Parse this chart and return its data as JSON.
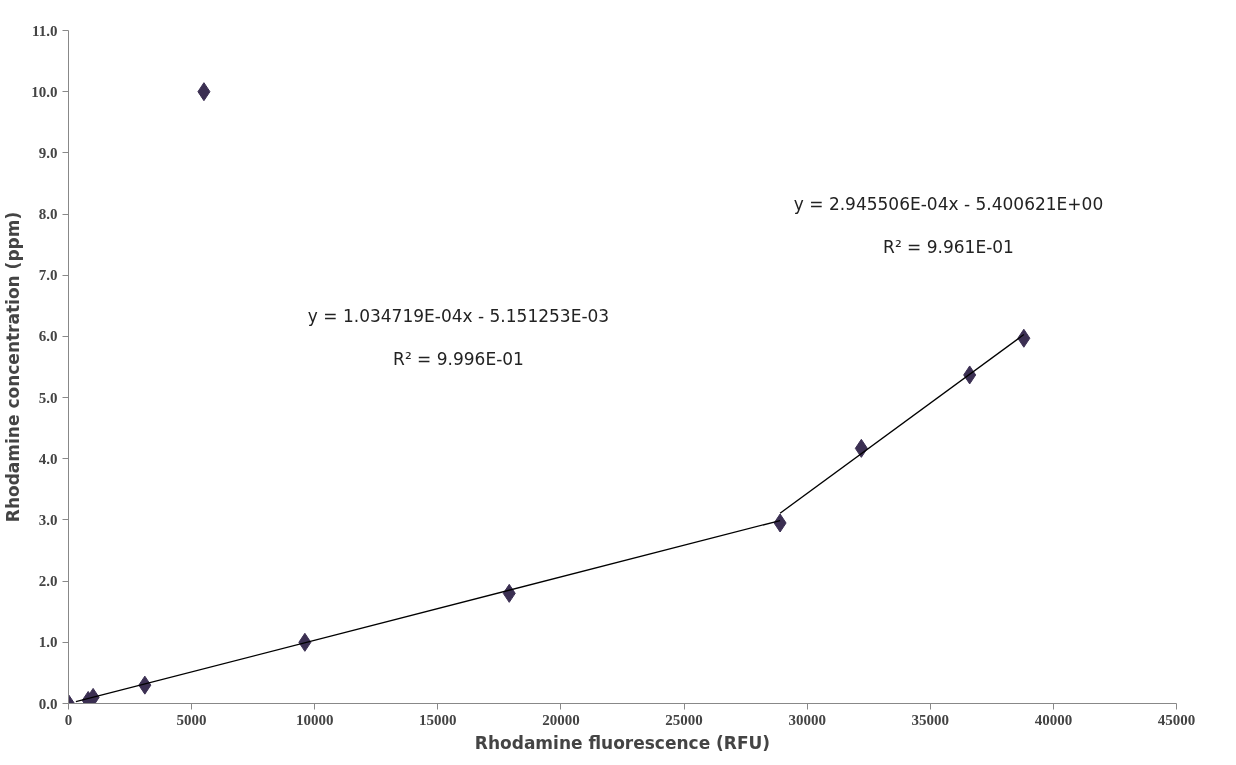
{
  "chart_data": {
    "type": "scatter",
    "xlabel": "Rhodamine fluorescence (RFU)",
    "ylabel": "Rhodamine concentration (ppm)",
    "grid": false,
    "xlim": [
      0,
      45000
    ],
    "xticks": [
      0,
      5000,
      10000,
      15000,
      20000,
      25000,
      30000,
      35000,
      40000,
      45000
    ],
    "ylim": [
      0,
      11
    ],
    "yticks": [
      {
        "value": 0,
        "label": "0.0"
      },
      {
        "value": 1,
        "label": "1.0"
      },
      {
        "value": 2,
        "label": "2.0"
      },
      {
        "value": 3,
        "label": "3.0"
      },
      {
        "value": 4,
        "label": "4.0"
      },
      {
        "value": 5,
        "label": "5.0"
      },
      {
        "value": 6,
        "label": "6.0"
      },
      {
        "value": 7,
        "label": "7.0"
      },
      {
        "value": 8,
        "label": "8.0"
      },
      {
        "value": 9,
        "label": "9.0"
      },
      {
        "value": 10,
        "label": "10.0"
      },
      {
        "value": 11,
        "label": "11.0"
      }
    ],
    "series": [
      {
        "marker": "diamond",
        "color": "#3b2f52",
        "x": [
          0,
          800,
          1000,
          3100,
          5500,
          9600,
          17900,
          28900,
          32200,
          36600,
          38800
        ],
        "values": [
          0,
          0.05,
          0.1,
          0.3,
          10.0,
          1.0,
          1.8,
          2.95,
          4.17,
          5.37,
          5.97
        ]
      },
      {
        "type": "line",
        "marker": "none",
        "color": "#000000",
        "x": [
          300,
          28900
        ],
        "values": [
          0.03,
          2.99
        ]
      },
      {
        "type": "line",
        "marker": "none",
        "color": "#000000",
        "x": [
          28900,
          38800
        ],
        "values": [
          3.11,
          6.03
        ]
      }
    ],
    "annotations": [
      "y = 1.034719E-04x - 5.151253E-03",
      "R² = 9.996E-01",
      "y = 2.945506E-04x - 5.400621E+00",
      "R² = 9.961E-01"
    ]
  }
}
